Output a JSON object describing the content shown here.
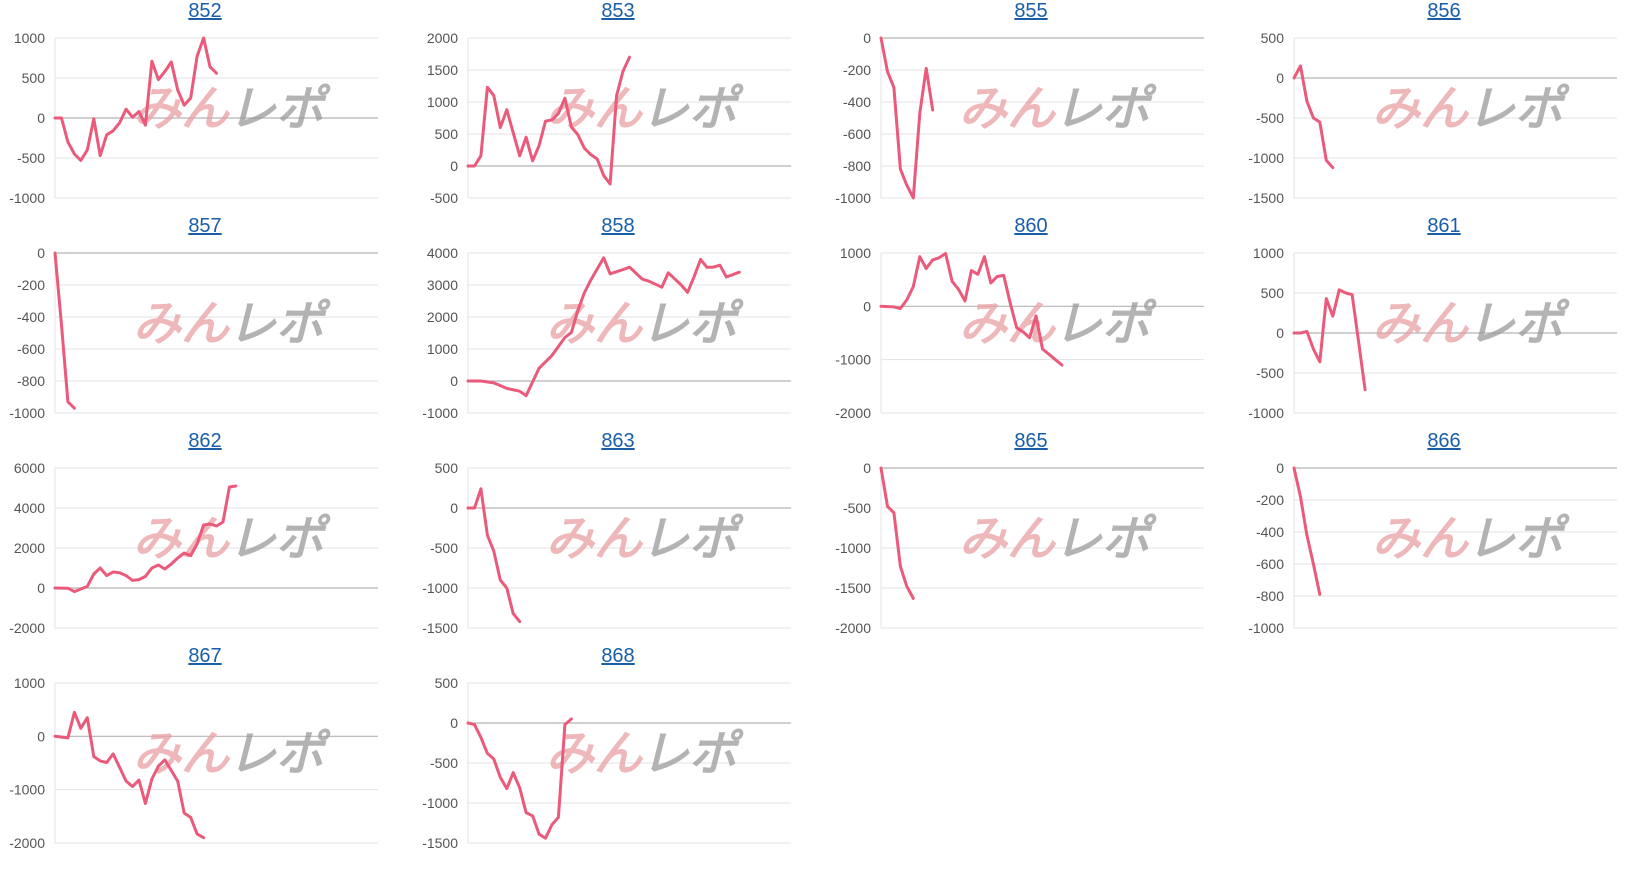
{
  "colors": {
    "line": "#ea5a7a",
    "grid": "#e3e3e3",
    "zero": "#b5b5b5",
    "title": "#1a5ea8"
  },
  "watermark": {
    "part1": "みん",
    "part2": "レポ"
  },
  "chart_data": [
    {
      "type": "line",
      "title": "852",
      "yticks": [
        1000,
        500,
        0,
        -500,
        -1000
      ],
      "ylim": [
        -1000,
        1000
      ],
      "xlim": [
        0,
        50
      ],
      "series": [
        {
          "values": [
            [
              0,
              0
            ],
            [
              1,
              0
            ],
            [
              2,
              -300
            ],
            [
              3,
              -450
            ],
            [
              4,
              -530
            ],
            [
              5,
              -400
            ],
            [
              6,
              -10
            ],
            [
              7,
              -470
            ],
            [
              8,
              -210
            ],
            [
              9,
              -160
            ],
            [
              10,
              -60
            ],
            [
              11,
              110
            ],
            [
              12,
              10
            ],
            [
              13,
              80
            ],
            [
              14,
              -90
            ],
            [
              15,
              710
            ],
            [
              16,
              480
            ],
            [
              17,
              580
            ],
            [
              18,
              700
            ],
            [
              19,
              350
            ],
            [
              20,
              160
            ],
            [
              21,
              250
            ],
            [
              22,
              770
            ],
            [
              23,
              1000
            ],
            [
              24,
              640
            ],
            [
              25,
              560
            ]
          ]
        }
      ]
    },
    {
      "type": "line",
      "title": "853",
      "yticks": [
        2000,
        1500,
        1000,
        500,
        0,
        -500
      ],
      "ylim": [
        -500,
        2000
      ],
      "xlim": [
        0,
        50
      ],
      "series": [
        {
          "values": [
            [
              0,
              0
            ],
            [
              1,
              0
            ],
            [
              2,
              160
            ],
            [
              3,
              1230
            ],
            [
              4,
              1100
            ],
            [
              5,
              600
            ],
            [
              6,
              880
            ],
            [
              7,
              520
            ],
            [
              8,
              160
            ],
            [
              9,
              450
            ],
            [
              10,
              80
            ],
            [
              11,
              320
            ],
            [
              12,
              700
            ],
            [
              13,
              720
            ],
            [
              14,
              820
            ],
            [
              15,
              1060
            ],
            [
              16,
              610
            ],
            [
              17,
              490
            ],
            [
              18,
              280
            ],
            [
              19,
              180
            ],
            [
              20,
              110
            ],
            [
              21,
              -150
            ],
            [
              22,
              -280
            ],
            [
              23,
              1100
            ],
            [
              24,
              1480
            ],
            [
              25,
              1700
            ]
          ]
        }
      ]
    },
    {
      "type": "line",
      "title": "855",
      "yticks": [
        0,
        -200,
        -400,
        -600,
        -800,
        -1000
      ],
      "ylim": [
        -1000,
        0
      ],
      "xlim": [
        0,
        50
      ],
      "series": [
        {
          "values": [
            [
              0,
              0
            ],
            [
              1,
              -210
            ],
            [
              2,
              -310
            ],
            [
              3,
              -820
            ],
            [
              4,
              -920
            ],
            [
              5,
              -1000
            ],
            [
              6,
              -470
            ],
            [
              7,
              -190
            ],
            [
              8,
              -450
            ]
          ]
        }
      ]
    },
    {
      "type": "line",
      "title": "856",
      "yticks": [
        500,
        0,
        -500,
        -1000,
        -1500
      ],
      "ylim": [
        -1500,
        500
      ],
      "xlim": [
        0,
        50
      ],
      "series": [
        {
          "values": [
            [
              0,
              0
            ],
            [
              1,
              150
            ],
            [
              2,
              -290
            ],
            [
              3,
              -500
            ],
            [
              4,
              -550
            ],
            [
              5,
              -1030
            ],
            [
              6,
              -1120
            ]
          ]
        }
      ]
    },
    {
      "type": "line",
      "title": "857",
      "yticks": [
        0,
        -200,
        -400,
        -600,
        -800,
        -1000
      ],
      "ylim": [
        -1000,
        0
      ],
      "xlim": [
        0,
        50
      ],
      "series": [
        {
          "values": [
            [
              0,
              0
            ],
            [
              1,
              -450
            ],
            [
              2,
              -930
            ],
            [
              3,
              -970
            ]
          ]
        }
      ]
    },
    {
      "type": "line",
      "title": "858",
      "yticks": [
        4000,
        3000,
        2000,
        1000,
        0,
        -1000
      ],
      "ylim": [
        -1000,
        4000
      ],
      "xlim": [
        0,
        50
      ],
      "series": [
        {
          "values": [
            [
              0,
              0
            ],
            [
              2,
              0
            ],
            [
              4,
              -60
            ],
            [
              6,
              -230
            ],
            [
              8,
              -320
            ],
            [
              9,
              -460
            ],
            [
              11,
              400
            ],
            [
              13,
              800
            ],
            [
              15,
              1360
            ],
            [
              16,
              1520
            ],
            [
              17,
              2200
            ],
            [
              18,
              2750
            ],
            [
              19,
              3150
            ],
            [
              21,
              3850
            ],
            [
              22,
              3350
            ],
            [
              24,
              3480
            ],
            [
              25,
              3560
            ],
            [
              27,
              3180
            ],
            [
              28,
              3120
            ],
            [
              30,
              2930
            ],
            [
              31,
              3380
            ],
            [
              33,
              3000
            ],
            [
              34,
              2770
            ],
            [
              35,
              3260
            ],
            [
              36,
              3800
            ],
            [
              37,
              3550
            ],
            [
              38,
              3560
            ],
            [
              39,
              3620
            ],
            [
              40,
              3250
            ],
            [
              42,
              3400
            ]
          ]
        }
      ]
    },
    {
      "type": "line",
      "title": "860",
      "yticks": [
        1000,
        0,
        -1000,
        -2000
      ],
      "ylim": [
        -2000,
        1000
      ],
      "xlim": [
        0,
        50
      ],
      "series": [
        {
          "values": [
            [
              0,
              0
            ],
            [
              2,
              -10
            ],
            [
              3,
              -40
            ],
            [
              4,
              120
            ],
            [
              5,
              370
            ],
            [
              6,
              930
            ],
            [
              7,
              710
            ],
            [
              8,
              870
            ],
            [
              9,
              910
            ],
            [
              10,
              990
            ],
            [
              11,
              470
            ],
            [
              12,
              320
            ],
            [
              13,
              100
            ],
            [
              14,
              670
            ],
            [
              15,
              600
            ],
            [
              16,
              930
            ],
            [
              17,
              440
            ],
            [
              18,
              560
            ],
            [
              19,
              580
            ],
            [
              20,
              60
            ],
            [
              21,
              -400
            ],
            [
              22,
              -480
            ],
            [
              23,
              -590
            ],
            [
              24,
              -180
            ],
            [
              25,
              -800
            ],
            [
              26,
              -900
            ],
            [
              27,
              -1000
            ],
            [
              28,
              -1100
            ]
          ]
        }
      ]
    },
    {
      "type": "line",
      "title": "861",
      "yticks": [
        1000,
        500,
        0,
        -500,
        -1000
      ],
      "ylim": [
        -1000,
        1000
      ],
      "xlim": [
        0,
        50
      ],
      "series": [
        {
          "values": [
            [
              0,
              0
            ],
            [
              1,
              0
            ],
            [
              2,
              20
            ],
            [
              3,
              -200
            ],
            [
              4,
              -360
            ],
            [
              5,
              430
            ],
            [
              6,
              210
            ],
            [
              7,
              540
            ],
            [
              8,
              500
            ],
            [
              9,
              480
            ],
            [
              10,
              -110
            ],
            [
              11,
              -710
            ]
          ]
        }
      ]
    },
    {
      "type": "line",
      "title": "862",
      "yticks": [
        6000,
        4000,
        2000,
        0,
        -2000
      ],
      "ylim": [
        -2000,
        6000
      ],
      "xlim": [
        0,
        50
      ],
      "series": [
        {
          "values": [
            [
              0,
              0
            ],
            [
              2,
              -10
            ],
            [
              3,
              -180
            ],
            [
              5,
              80
            ],
            [
              6,
              700
            ],
            [
              7,
              1000
            ],
            [
              8,
              620
            ],
            [
              9,
              800
            ],
            [
              10,
              760
            ],
            [
              11,
              620
            ],
            [
              12,
              380
            ],
            [
              13,
              420
            ],
            [
              14,
              580
            ],
            [
              15,
              1000
            ],
            [
              16,
              1150
            ],
            [
              17,
              950
            ],
            [
              18,
              1200
            ],
            [
              19,
              1500
            ],
            [
              20,
              1750
            ],
            [
              21,
              1620
            ],
            [
              22,
              2200
            ],
            [
              23,
              3150
            ],
            [
              24,
              3200
            ],
            [
              25,
              3100
            ],
            [
              26,
              3300
            ],
            [
              27,
              5050
            ],
            [
              28,
              5100
            ]
          ]
        }
      ]
    },
    {
      "type": "line",
      "title": "863",
      "yticks": [
        500,
        0,
        -500,
        -1000,
        -1500
      ],
      "ylim": [
        -1500,
        500
      ],
      "xlim": [
        0,
        50
      ],
      "series": [
        {
          "values": [
            [
              0,
              0
            ],
            [
              1,
              0
            ],
            [
              2,
              240
            ],
            [
              3,
              -340
            ],
            [
              4,
              -540
            ],
            [
              5,
              -900
            ],
            [
              6,
              -1000
            ],
            [
              7,
              -1320
            ],
            [
              8,
              -1420
            ]
          ]
        }
      ]
    },
    {
      "type": "line",
      "title": "865",
      "yticks": [
        0,
        -500,
        -1000,
        -1500,
        -2000
      ],
      "ylim": [
        -2000,
        0
      ],
      "xlim": [
        0,
        50
      ],
      "series": [
        {
          "values": [
            [
              0,
              0
            ],
            [
              1,
              -480
            ],
            [
              2,
              -560
            ],
            [
              3,
              -1230
            ],
            [
              4,
              -1480
            ],
            [
              5,
              -1630
            ]
          ]
        }
      ]
    },
    {
      "type": "line",
      "title": "866",
      "yticks": [
        0,
        -200,
        -400,
        -600,
        -800,
        -1000
      ],
      "ylim": [
        -1000,
        0
      ],
      "xlim": [
        0,
        50
      ],
      "series": [
        {
          "values": [
            [
              0,
              0
            ],
            [
              1,
              -180
            ],
            [
              2,
              -420
            ],
            [
              3,
              -600
            ],
            [
              4,
              -790
            ]
          ]
        }
      ]
    },
    {
      "type": "line",
      "title": "867",
      "yticks": [
        1000,
        0,
        -1000,
        -2000
      ],
      "ylim": [
        -2000,
        1000
      ],
      "xlim": [
        0,
        50
      ],
      "series": [
        {
          "values": [
            [
              0,
              0
            ],
            [
              2,
              -30
            ],
            [
              3,
              450
            ],
            [
              4,
              150
            ],
            [
              5,
              350
            ],
            [
              6,
              -380
            ],
            [
              7,
              -460
            ],
            [
              8,
              -490
            ],
            [
              9,
              -330
            ],
            [
              10,
              -580
            ],
            [
              11,
              -840
            ],
            [
              12,
              -940
            ],
            [
              13,
              -820
            ],
            [
              14,
              -1260
            ],
            [
              15,
              -800
            ],
            [
              16,
              -560
            ],
            [
              17,
              -440
            ],
            [
              18,
              -640
            ],
            [
              19,
              -840
            ],
            [
              20,
              -1440
            ],
            [
              21,
              -1520
            ],
            [
              22,
              -1830
            ],
            [
              23,
              -1900
            ]
          ]
        }
      ]
    },
    {
      "type": "line",
      "title": "868",
      "yticks": [
        500,
        0,
        -500,
        -1000,
        -1500
      ],
      "ylim": [
        -1500,
        500
      ],
      "xlim": [
        0,
        50
      ],
      "series": [
        {
          "values": [
            [
              0,
              0
            ],
            [
              1,
              -20
            ],
            [
              2,
              -180
            ],
            [
              3,
              -380
            ],
            [
              4,
              -450
            ],
            [
              5,
              -680
            ],
            [
              6,
              -820
            ],
            [
              7,
              -620
            ],
            [
              8,
              -810
            ],
            [
              9,
              -1120
            ],
            [
              10,
              -1160
            ],
            [
              11,
              -1390
            ],
            [
              12,
              -1440
            ],
            [
              13,
              -1270
            ],
            [
              14,
              -1180
            ],
            [
              15,
              -20
            ],
            [
              16,
              50
            ]
          ]
        }
      ]
    }
  ]
}
